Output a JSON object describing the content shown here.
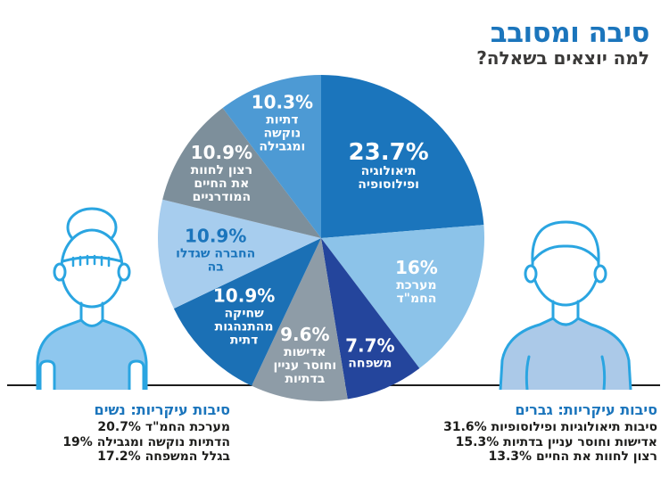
{
  "header": {
    "title": "סיבה ומסובב",
    "subtitle": "למה יוצאים בשאלה?"
  },
  "chart_data": {
    "type": "pie",
    "title": "למה יוצאים בשאלה?",
    "start_angle_deg": 0,
    "direction": "clockwise",
    "slices": [
      {
        "value": 23.7,
        "pct_label": "23.7%",
        "label_lines": [
          "תיאולוגיה",
          "ופילוסופיה"
        ],
        "color": "#1b75bc",
        "text_color": "#ffffff",
        "label_r": 0.61
      },
      {
        "value": 16,
        "pct_label": "16%",
        "label_lines": [
          "מערכת",
          "החמ\"ד"
        ],
        "color": "#8cc3e9",
        "text_color": "#ffffff",
        "label_r": 0.64
      },
      {
        "value": 7.7,
        "pct_label": "7.7%",
        "label_lines": [
          "משפחה"
        ],
        "color": "#24459c",
        "text_color": "#ffffff",
        "label_r": 0.76
      },
      {
        "value": 9.6,
        "pct_label": "9.6%",
        "label_lines": [
          "אדישות",
          "וחוסר עניין",
          "בדתיות"
        ],
        "color": "#8e9ca7",
        "text_color": "#ffffff",
        "label_r": 0.72
      },
      {
        "value": 10.9,
        "pct_label": "10.9%",
        "label_lines": [
          "שחיקה",
          "מהתנהגות",
          "דתית"
        ],
        "color": "#1b70b5",
        "text_color": "#ffffff",
        "label_r": 0.67
      },
      {
        "value": 10.9,
        "pct_label": "10.9%",
        "label_lines": [
          "החברה שגדלו",
          "בה"
        ],
        "color": "#a7cdee",
        "text_color": "#1b75bc",
        "label_r": 0.65
      },
      {
        "value": 10.9,
        "pct_label": "10.9%",
        "label_lines": [
          "רצון לחוות",
          "את החיים",
          "המודרניים"
        ],
        "color": "#7d8f9b",
        "text_color": "#ffffff",
        "label_r": 0.73
      },
      {
        "value": 10.3,
        "pct_label": "10.3%",
        "label_lines": [
          "דתיות",
          "נוקשה",
          "ומגבילה"
        ],
        "color": "#4d9ad4",
        "text_color": "#ffffff",
        "label_r": 0.75
      }
    ],
    "notes_women": {
      "title": "סיבות עיקריות: נשים",
      "items": [
        {
          "pct": "20.7%",
          "label": "מערכת החמ\"ד"
        },
        {
          "pct": "19%",
          "label": "הדתיות נוקשה ומגבילה"
        },
        {
          "pct": "17.2%",
          "label": "בגלל המשפחה"
        }
      ]
    },
    "notes_men": {
      "title": "סיבות עיקריות: גברים",
      "items": [
        {
          "pct": "31.6%",
          "label": "סיבות תיאולוגיות ופילוסופיות"
        },
        {
          "pct": "15.3%",
          "label": "אדישות וחוסר עניין בדתיות"
        },
        {
          "pct": "13.3%",
          "label": "רצון לחוות את החיים"
        }
      ]
    }
  },
  "colors": {
    "brand_blue": "#1b75bc",
    "subtitle_dark": "#3b3a39",
    "outline_cyan": "#2aa5e1",
    "woman_shirt": "#8ec7ee",
    "man_shirt": "#abc9e8",
    "ground_line": "#1c1c1c"
  }
}
